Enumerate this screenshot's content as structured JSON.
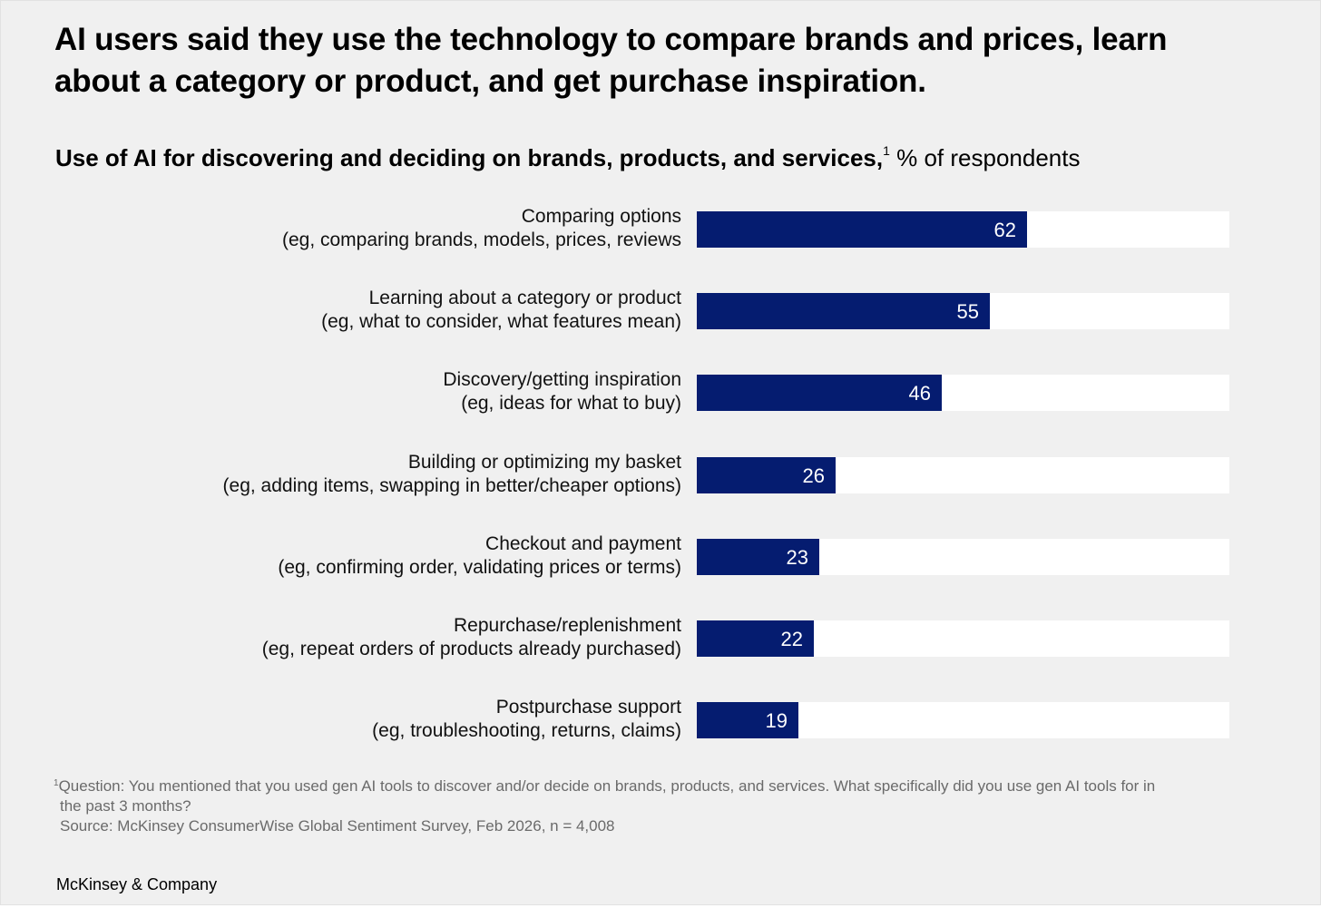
{
  "title": "AI users said they use the technology to compare brands and prices, learn about a category or product, and get purchase inspiration.",
  "subtitle": {
    "main": "Use of AI for discovering and deciding on brands, products, and services,",
    "marker": "1",
    "unit": " % of respondents"
  },
  "chart_data": {
    "type": "bar",
    "orientation": "horizontal",
    "title": "Use of AI for discovering and deciding on brands, products, and services,",
    "unit": "% of respondents",
    "xlim": [
      0,
      100
    ],
    "grid": false,
    "legend": "none",
    "bar_color": "#051c70",
    "track_color": "#ffffff",
    "categories": [
      {
        "line1": "Comparing options",
        "line2": "(eg, comparing brands, models, prices, reviews"
      },
      {
        "line1": "Learning about a category or product",
        "line2": "(eg, what to consider, what features mean)"
      },
      {
        "line1": "Discovery/getting inspiration",
        "line2": "(eg, ideas for what to buy)"
      },
      {
        "line1": "Building or optimizing my basket",
        "line2": "(eg, adding items, swapping in better/cheaper options)"
      },
      {
        "line1": "Checkout and payment",
        "line2": "(eg, confirming order, validating prices or terms)"
      },
      {
        "line1": "Repurchase/replenishment",
        "line2": "(eg, repeat orders of products already purchased)"
      },
      {
        "line1": "Postpurchase support",
        "line2": "(eg, troubleshooting, returns, claims)"
      }
    ],
    "values": [
      62,
      55,
      46,
      26,
      23,
      22,
      19
    ]
  },
  "footnote": {
    "marker": "1",
    "question": "Question: You mentioned that you used gen AI tools to discover and/or decide on brands, products, and services. What specifically did you use gen AI tools for in",
    "question_cont": "the past 3 months?",
    "source": "Source: McKinsey ConsumerWise Global Sentiment Survey, Feb 2026, n = 4,008"
  },
  "brand": "McKinsey & Company"
}
